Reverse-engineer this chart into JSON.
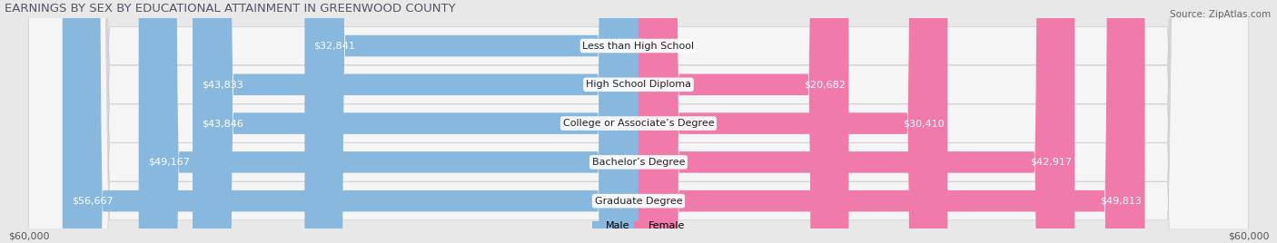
{
  "title": "EARNINGS BY SEX BY EDUCATIONAL ATTAINMENT IN GREENWOOD COUNTY",
  "source": "Source: ZipAtlas.com",
  "categories": [
    "Less than High School",
    "High School Diploma",
    "College or Associate’s Degree",
    "Bachelor’s Degree",
    "Graduate Degree"
  ],
  "male_values": [
    32841,
    43833,
    43846,
    49167,
    56667
  ],
  "female_values": [
    0,
    20682,
    30410,
    42917,
    49813
  ],
  "max_value": 60000,
  "male_color": "#88b8de",
  "female_color": "#f07aaa",
  "male_label": "Male",
  "female_label": "Female",
  "bg_color": "#e8e8e8",
  "bar_bg_color": "#d8d8d8",
  "row_bg_color": "#f5f5f5",
  "title_fontsize": 9.5,
  "value_fontsize": 8,
  "cat_fontsize": 8,
  "source_fontsize": 7.5,
  "axis_fontsize": 8
}
